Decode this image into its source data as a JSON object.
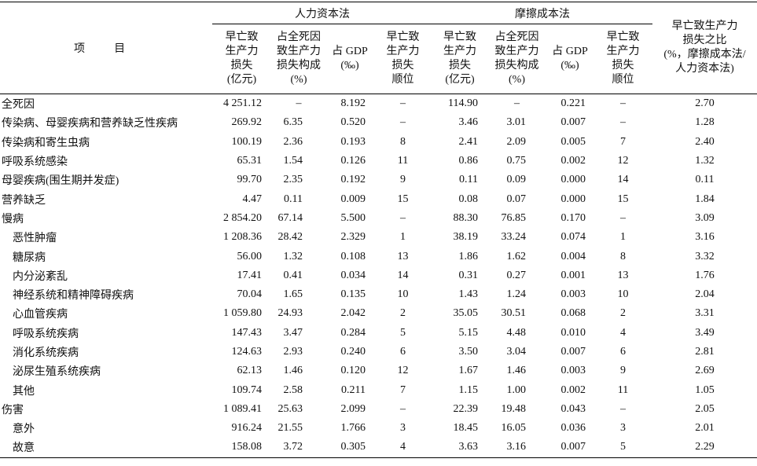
{
  "table": {
    "item_header": "项 目",
    "groups": [
      "人力资本法",
      "摩擦成本法"
    ],
    "columns": [
      [
        "早亡致",
        "生产力",
        "损失",
        "(亿元)"
      ],
      [
        "占全死因",
        "致生产力",
        "损失构成",
        "(%)"
      ],
      [
        "占 GDP",
        "(‰)"
      ],
      [
        "早亡致",
        "生产力",
        "损失",
        "顺位"
      ],
      [
        "早亡致",
        "生产力",
        "损失",
        "(亿元)"
      ],
      [
        "占全死因",
        "致生产力",
        "损失构成",
        "(%)"
      ],
      [
        "占 GDP",
        "(‰)"
      ],
      [
        "早亡致",
        "生产力",
        "损失",
        "顺位"
      ],
      [
        "早亡致生产力",
        "损失之比",
        "(%，摩擦成本法/",
        "人力资本法)"
      ]
    ],
    "rows": [
      {
        "label": "全死因",
        "level": 0,
        "cells": [
          "4 251.12",
          "–",
          "8.192",
          "–",
          "114.90",
          "–",
          "0.221",
          "–",
          "2.70"
        ]
      },
      {
        "label": "传染病、母婴疾病和营养缺乏性疾病",
        "level": 0,
        "cells": [
          "269.92",
          "6.35",
          "0.520",
          "–",
          "3.46",
          "3.01",
          "0.007",
          "–",
          "1.28"
        ]
      },
      {
        "label": "传染病和寄生虫病",
        "level": 0,
        "cells": [
          "100.19",
          "2.36",
          "0.193",
          "8",
          "2.41",
          "2.09",
          "0.005",
          "7",
          "2.40"
        ]
      },
      {
        "label": "呼吸系统感染",
        "level": 0,
        "cells": [
          "65.31",
          "1.54",
          "0.126",
          "11",
          "0.86",
          "0.75",
          "0.002",
          "12",
          "1.32"
        ]
      },
      {
        "label": "母婴疾病(围生期并发症)",
        "level": 0,
        "cells": [
          "99.70",
          "2.35",
          "0.192",
          "9",
          "0.11",
          "0.09",
          "0.000",
          "14",
          "0.11"
        ]
      },
      {
        "label": "营养缺乏",
        "level": 0,
        "cells": [
          "4.47",
          "0.11",
          "0.009",
          "15",
          "0.08",
          "0.07",
          "0.000",
          "15",
          "1.84"
        ]
      },
      {
        "label": "慢病",
        "level": 0,
        "cells": [
          "2 854.20",
          "67.14",
          "5.500",
          "–",
          "88.30",
          "76.85",
          "0.170",
          "–",
          "3.09"
        ]
      },
      {
        "label": "恶性肿瘤",
        "level": 1,
        "cells": [
          "1 208.36",
          "28.42",
          "2.329",
          "1",
          "38.19",
          "33.24",
          "0.074",
          "1",
          "3.16"
        ]
      },
      {
        "label": "糖尿病",
        "level": 1,
        "cells": [
          "56.00",
          "1.32",
          "0.108",
          "13",
          "1.86",
          "1.62",
          "0.004",
          "8",
          "3.32"
        ]
      },
      {
        "label": "内分泌紊乱",
        "level": 1,
        "cells": [
          "17.41",
          "0.41",
          "0.034",
          "14",
          "0.31",
          "0.27",
          "0.001",
          "13",
          "1.76"
        ]
      },
      {
        "label": "神经系统和精神障碍疾病",
        "level": 1,
        "cells": [
          "70.04",
          "1.65",
          "0.135",
          "10",
          "1.43",
          "1.24",
          "0.003",
          "10",
          "2.04"
        ]
      },
      {
        "label": "心血管疾病",
        "level": 1,
        "cells": [
          "1 059.80",
          "24.93",
          "2.042",
          "2",
          "35.05",
          "30.51",
          "0.068",
          "2",
          "3.31"
        ]
      },
      {
        "label": "呼吸系统疾病",
        "level": 1,
        "cells": [
          "147.43",
          "3.47",
          "0.284",
          "5",
          "5.15",
          "4.48",
          "0.010",
          "4",
          "3.49"
        ]
      },
      {
        "label": "消化系统疾病",
        "level": 1,
        "cells": [
          "124.63",
          "2.93",
          "0.240",
          "6",
          "3.50",
          "3.04",
          "0.007",
          "6",
          "2.81"
        ]
      },
      {
        "label": "泌尿生殖系统疾病",
        "level": 1,
        "cells": [
          "62.13",
          "1.46",
          "0.120",
          "12",
          "1.67",
          "1.46",
          "0.003",
          "9",
          "2.69"
        ]
      },
      {
        "label": "其他",
        "level": 1,
        "cells": [
          "109.74",
          "2.58",
          "0.211",
          "7",
          "1.15",
          "1.00",
          "0.002",
          "11",
          "1.05"
        ]
      },
      {
        "label": "伤害",
        "level": 0,
        "cells": [
          "1 089.41",
          "25.63",
          "2.099",
          "–",
          "22.39",
          "19.48",
          "0.043",
          "–",
          "2.05"
        ]
      },
      {
        "label": "意外",
        "level": 1,
        "cells": [
          "916.24",
          "21.55",
          "1.766",
          "3",
          "18.45",
          "16.05",
          "0.036",
          "3",
          "2.01"
        ]
      },
      {
        "label": "故意",
        "level": 1,
        "cells": [
          "158.08",
          "3.72",
          "0.305",
          "4",
          "3.63",
          "3.16",
          "0.007",
          "5",
          "2.29"
        ]
      }
    ]
  }
}
